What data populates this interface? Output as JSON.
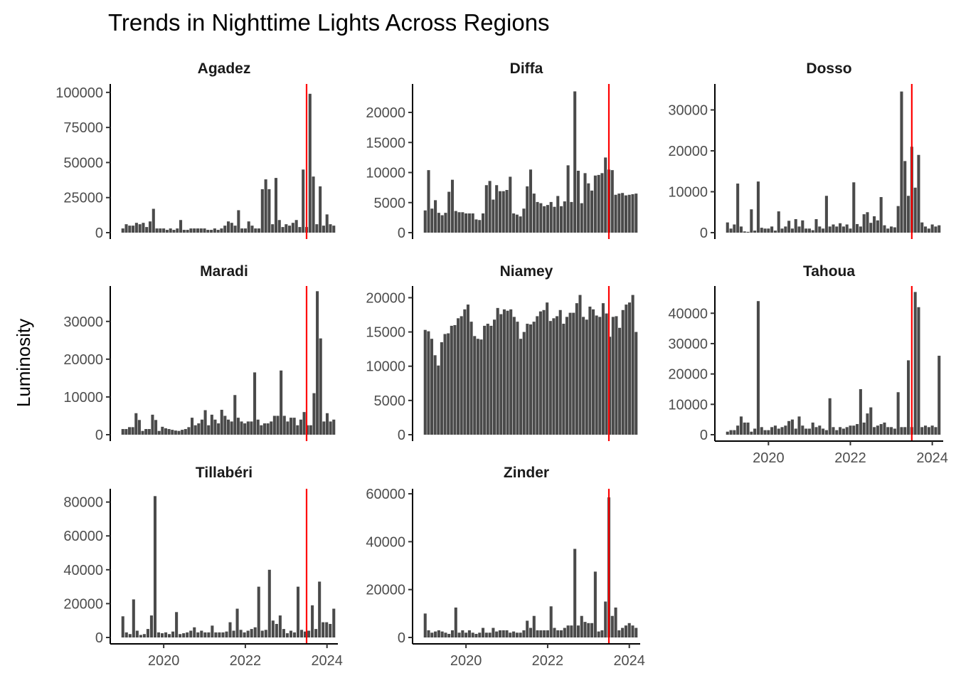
{
  "chart_data": {
    "type": "bar",
    "title": "Trends in Nighttime Lights Across Regions",
    "ylabel": "Luminosity",
    "xlabel": "",
    "x_start": "2019-01",
    "x_end": "2024-03",
    "x_ticks": [
      2020,
      2022,
      2024
    ],
    "reference_line_date": "2023-07",
    "panels": [
      {
        "name": "Agadez",
        "ylim": [
          0,
          105000
        ],
        "yticks": [
          0,
          25000,
          50000,
          75000,
          100000
        ],
        "values": [
          3000,
          6000,
          5000,
          5000,
          7000,
          6000,
          7000,
          4000,
          8000,
          17000,
          3000,
          3000,
          3000,
          2000,
          3000,
          2000,
          3000,
          9000,
          2000,
          2000,
          3000,
          3000,
          3000,
          3000,
          3000,
          2000,
          2000,
          3000,
          2000,
          3000,
          5000,
          8000,
          7000,
          5000,
          16000,
          3000,
          3000,
          8000,
          5000,
          3000,
          3000,
          31000,
          38000,
          31000,
          6000,
          39000,
          9000,
          4000,
          6000,
          5000,
          7000,
          9000,
          4000,
          45000,
          4000,
          99000,
          40000,
          6000,
          33000,
          5000,
          13000,
          6000,
          5000
        ]
      },
      {
        "name": "Diffa",
        "ylim": [
          0,
          24500
        ],
        "yticks": [
          0,
          5000,
          10000,
          15000,
          20000
        ],
        "values": [
          3700,
          10400,
          4000,
          5400,
          3300,
          2900,
          3300,
          6800,
          8800,
          3600,
          3400,
          3400,
          3200,
          3200,
          3200,
          2200,
          2100,
          3200,
          7900,
          8600,
          5500,
          7900,
          6900,
          6900,
          7100,
          9300,
          3200,
          3000,
          2700,
          4000,
          7700,
          10500,
          6500,
          5100,
          4900,
          4400,
          4600,
          5100,
          4300,
          6100,
          4400,
          5200,
          11200,
          5100,
          23500,
          10300,
          4900,
          9900,
          8200,
          7000,
          9500,
          9600,
          9900,
          12500,
          10500,
          10400,
          6300,
          6500,
          6600,
          6200,
          6300,
          6400,
          6500
        ]
      },
      {
        "name": "Dosso",
        "ylim": [
          0,
          36000
        ],
        "yticks": [
          0,
          10000,
          20000,
          30000
        ],
        "values": [
          2500,
          1000,
          2000,
          12000,
          1500,
          300,
          200,
          5700,
          500,
          12500,
          1200,
          1000,
          1000,
          1500,
          500,
          5200,
          1000,
          1500,
          2900,
          1000,
          3300,
          1500,
          3000,
          1000,
          1000,
          600,
          3300,
          1500,
          1000,
          9000,
          1500,
          2000,
          1500,
          2300,
          1500,
          2000,
          1000,
          12300,
          2100,
          1500,
          4500,
          5000,
          2400,
          4000,
          3000,
          8700,
          1800,
          1000,
          1500,
          1300,
          6500,
          34500,
          17500,
          9000,
          21000,
          11000,
          19000,
          2500,
          1500,
          1000,
          2000,
          1500,
          1800
        ]
      },
      {
        "name": "Maradi",
        "ylim": [
          0,
          39000
        ],
        "yticks": [
          0,
          10000,
          20000,
          30000
        ],
        "values": [
          1500,
          1500,
          2000,
          2000,
          5700,
          3900,
          1000,
          1500,
          1500,
          5300,
          3900,
          1000,
          2100,
          1700,
          1500,
          1300,
          1100,
          1000,
          1300,
          1500,
          2000,
          4500,
          2500,
          3000,
          4000,
          6500,
          2500,
          5300,
          4000,
          3000,
          6600,
          5000,
          4000,
          3500,
          10500,
          4500,
          3500,
          3000,
          3500,
          3500,
          16500,
          4000,
          2500,
          3000,
          3000,
          3500,
          5000,
          5000,
          17000,
          5000,
          3500,
          4500,
          4500,
          2500,
          4000,
          6000,
          2500,
          2500,
          11000,
          38000,
          25500,
          3500,
          5700,
          3500,
          4000
        ]
      },
      {
        "name": "Niamey",
        "ylim": [
          0,
          21500
        ],
        "yticks": [
          0,
          5000,
          10000,
          15000,
          20000
        ],
        "values": [
          15300,
          15100,
          14000,
          11600,
          10100,
          13500,
          14700,
          14800,
          15900,
          16000,
          17000,
          17300,
          18300,
          19000,
          16500,
          14400,
          14000,
          13900,
          15900,
          16200,
          15900,
          16800,
          18500,
          17600,
          18300,
          18100,
          18300,
          17200,
          16500,
          14000,
          15000,
          16200,
          16100,
          16500,
          17300,
          18000,
          18200,
          19300,
          16600,
          17000,
          17300,
          18200,
          16200,
          17200,
          17800,
          17800,
          19200,
          20400,
          17200,
          16800,
          18700,
          18300,
          17400,
          17200,
          19200,
          17700,
          14300,
          17200,
          17300,
          15600,
          18200,
          19000,
          19300,
          20400,
          15000
        ]
      },
      {
        "name": "Tahoua",
        "ylim": [
          0,
          48500
        ],
        "yticks": [
          0,
          10000,
          20000,
          30000,
          40000
        ],
        "values": [
          1000,
          1500,
          1500,
          3000,
          6000,
          4000,
          4000,
          1000,
          2000,
          44000,
          2500,
          1500,
          1500,
          2500,
          3000,
          2000,
          2500,
          3000,
          4500,
          5000,
          2000,
          6000,
          3000,
          2000,
          2000,
          4000,
          2500,
          3000,
          2000,
          1500,
          12000,
          2500,
          1500,
          2500,
          2000,
          2500,
          3000,
          3000,
          3500,
          15000,
          4000,
          7000,
          9000,
          2500,
          3000,
          3500,
          4000,
          2500,
          2500,
          2000,
          14000,
          2500,
          2500,
          24500,
          2500,
          47000,
          42000,
          2500,
          3000,
          2500,
          3000,
          2500,
          26000
        ]
      },
      {
        "name": "Tillabéri",
        "ylim": [
          0,
          87000
        ],
        "yticks": [
          0,
          20000,
          40000,
          60000,
          80000
        ],
        "values": [
          12500,
          3000,
          2000,
          22500,
          4000,
          1500,
          2000,
          5000,
          13000,
          83500,
          3000,
          2500,
          3000,
          2000,
          3500,
          15000,
          2000,
          2500,
          3000,
          4000,
          6000,
          3000,
          4000,
          3000,
          3000,
          7000,
          3000,
          3000,
          3000,
          3500,
          9000,
          4000,
          17000,
          4500,
          3000,
          4000,
          5000,
          6000,
          30000,
          4000,
          4500,
          40000,
          10000,
          8000,
          13000,
          5000,
          2500,
          4000,
          3000,
          30000,
          4500,
          3500,
          4000,
          19000,
          5000,
          33000,
          9000,
          9000,
          8000,
          17000
        ]
      },
      {
        "name": "Zinder",
        "ylim": [
          0,
          61500
        ],
        "yticks": [
          0,
          20000,
          40000,
          60000
        ],
        "values": [
          10000,
          3000,
          2000,
          2500,
          3000,
          2500,
          2000,
          1500,
          3000,
          12500,
          2000,
          3000,
          2000,
          3000,
          2000,
          1500,
          2000,
          4000,
          2000,
          2000,
          4000,
          2500,
          3000,
          3000,
          3000,
          2000,
          2500,
          2000,
          2000,
          3000,
          7000,
          4000,
          9000,
          3000,
          3000,
          3000,
          3000,
          13000,
          4000,
          3000,
          3000,
          4000,
          5000,
          5000,
          37000,
          5000,
          9000,
          6500,
          6000,
          6000,
          27500,
          2500,
          3000,
          15000,
          58500,
          9000,
          12500,
          3000,
          4000,
          5000,
          6000,
          5000,
          4000
        ]
      }
    ]
  }
}
